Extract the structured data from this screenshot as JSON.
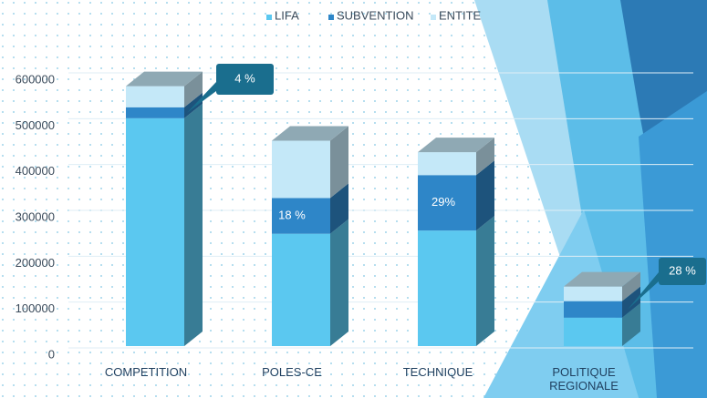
{
  "chart_data": {
    "type": "bar3d_stacked",
    "categories": [
      "COMPETITION",
      "POLES-CE",
      "TECHNIQUE",
      "POLITIQUE REGIONALE"
    ],
    "series": [
      {
        "name": "LIFA",
        "color": "#5bc8f0",
        "values": [
          497000,
          245000,
          252000,
          62000
        ]
      },
      {
        "name": "SUBVENTION",
        "color": "#2e86c8",
        "values": [
          24000,
          78000,
          121000,
          36000
        ]
      },
      {
        "name": "ENTITE",
        "color": "#c4e8f8",
        "values": [
          46000,
          125000,
          50000,
          32000
        ]
      }
    ],
    "ylim": [
      0,
      600000
    ],
    "yticks": [
      0,
      100000,
      200000,
      300000,
      400000,
      500000,
      600000
    ],
    "annotations": [
      "4 %",
      "18 %",
      "29%",
      "28 %"
    ]
  }
}
